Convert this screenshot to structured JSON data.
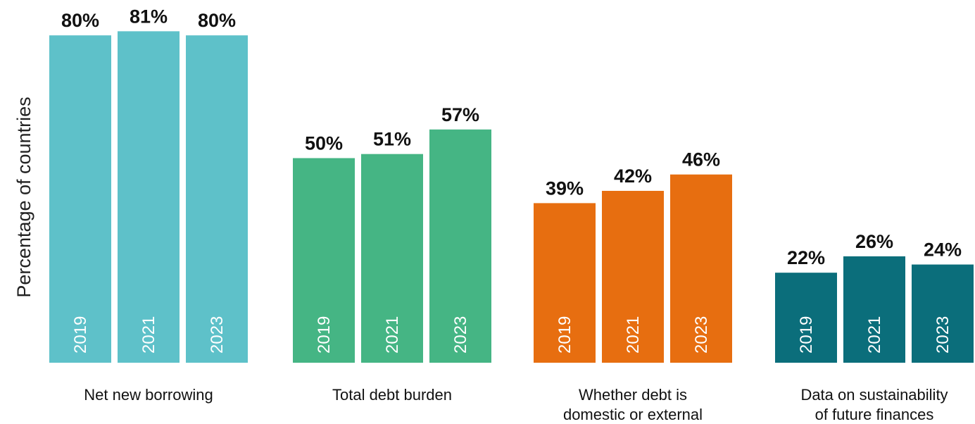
{
  "chart_data": {
    "type": "bar",
    "ylabel": "Percentage of countries",
    "ylim": [
      0,
      100
    ],
    "grid": false,
    "groups": [
      {
        "label_lines": [
          "Net new borrowing"
        ],
        "color": "#5EC1C9",
        "bars": [
          {
            "year": "2019",
            "value": 80,
            "label": "80%"
          },
          {
            "year": "2021",
            "value": 81,
            "label": "81%"
          },
          {
            "year": "2023",
            "value": 80,
            "label": "80%"
          }
        ]
      },
      {
        "label_lines": [
          "Total debt burden"
        ],
        "color": "#45B584",
        "bars": [
          {
            "year": "2019",
            "value": 50,
            "label": "50%"
          },
          {
            "year": "2021",
            "value": 51,
            "label": "51%"
          },
          {
            "year": "2023",
            "value": 57,
            "label": "57%"
          }
        ]
      },
      {
        "label_lines": [
          "Whether debt is",
          "domestic or external"
        ],
        "color": "#E76E10",
        "bars": [
          {
            "year": "2019",
            "value": 39,
            "label": "39%"
          },
          {
            "year": "2021",
            "value": 42,
            "label": "42%"
          },
          {
            "year": "2023",
            "value": 46,
            "label": "46%"
          }
        ]
      },
      {
        "label_lines": [
          "Data on sustainability",
          "of future finances"
        ],
        "color": "#0B6E7B",
        "bars": [
          {
            "year": "2019",
            "value": 22,
            "label": "22%"
          },
          {
            "year": "2021",
            "value": 26,
            "label": "26%"
          },
          {
            "year": "2023",
            "value": 24,
            "label": "24%"
          }
        ]
      }
    ]
  }
}
